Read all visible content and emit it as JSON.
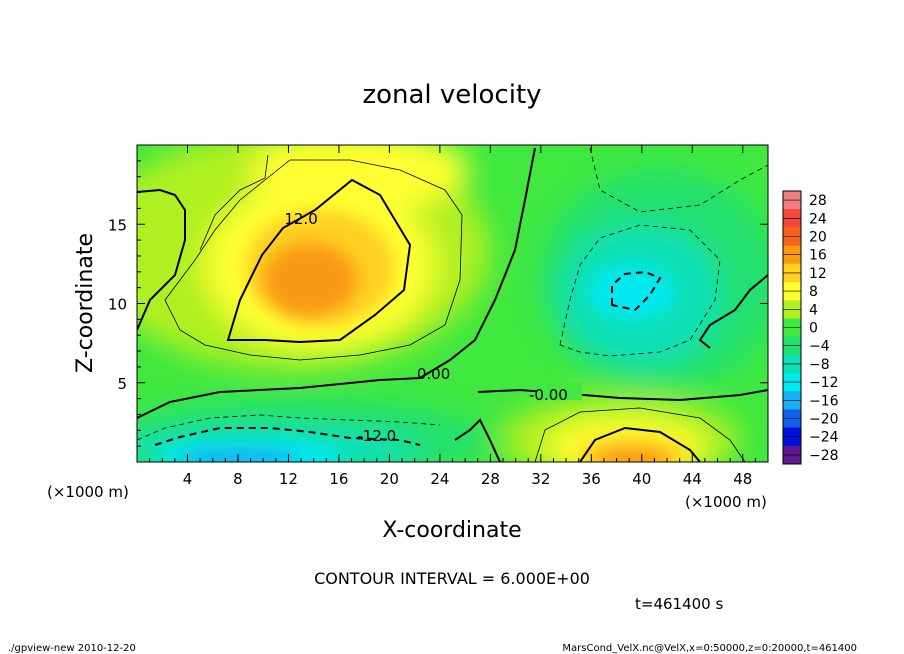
{
  "chart_data": {
    "type": "heatmap",
    "title": "zonal velocity",
    "xlabel": "X-coordinate",
    "ylabel": "Z-coordinate",
    "x_units": "(×1000 m)",
    "y_units": "(×1000 m)",
    "xlim": [
      0,
      50
    ],
    "ylim": [
      0,
      20
    ],
    "x_ticks": [
      4,
      8,
      12,
      16,
      20,
      24,
      28,
      32,
      36,
      40,
      44,
      48
    ],
    "y_ticks": [
      5,
      10,
      15
    ],
    "contour_interval_label": "CONTOUR INTERVAL = 6.000E+00",
    "contour_labels": [
      {
        "text": "12.0",
        "x": 13.0,
        "z": 15.4
      },
      {
        "text": "0.00",
        "x": 23.5,
        "z": 5.6
      },
      {
        "text": "-0.00",
        "x": 32.6,
        "z": 4.3
      },
      {
        "text": "-12.0",
        "x": 19.0,
        "z": 1.7
      }
    ],
    "colorbar": {
      "labels": [
        "28",
        "24",
        "20",
        "16",
        "12",
        "8",
        "4",
        "0",
        "−4",
        "−8",
        "−12",
        "−16",
        "−20",
        "−24",
        "−28"
      ],
      "colors": [
        "#f08080",
        "#f24a3c",
        "#f4621e",
        "#f99a14",
        "#ffd020",
        "#ffff30",
        "#b0f020",
        "#40e840",
        "#20e070",
        "#10e0b8",
        "#00e8f0",
        "#18b0f0",
        "#1060e8",
        "#0010d8",
        "#601890"
      ]
    },
    "features": [
      {
        "name": "positive-max-upper-left",
        "x": 15.0,
        "z": 12.0,
        "value": 16
      },
      {
        "name": "positive-max-lower-right",
        "x": 40.0,
        "z": 1.0,
        "value": 16
      },
      {
        "name": "negative-min-right",
        "x": 39.5,
        "z": 10.5,
        "value": -14
      },
      {
        "name": "negative-min-lower-left",
        "x": 12.0,
        "z": 1.2,
        "value": -16
      }
    ]
  },
  "time_label": "t=461400 s",
  "footer": {
    "left": "./gpview-new  2010-12-20",
    "right": "MarsCond_VelX.nc@VelX,x=0:50000,z=0:20000,t=461400"
  }
}
